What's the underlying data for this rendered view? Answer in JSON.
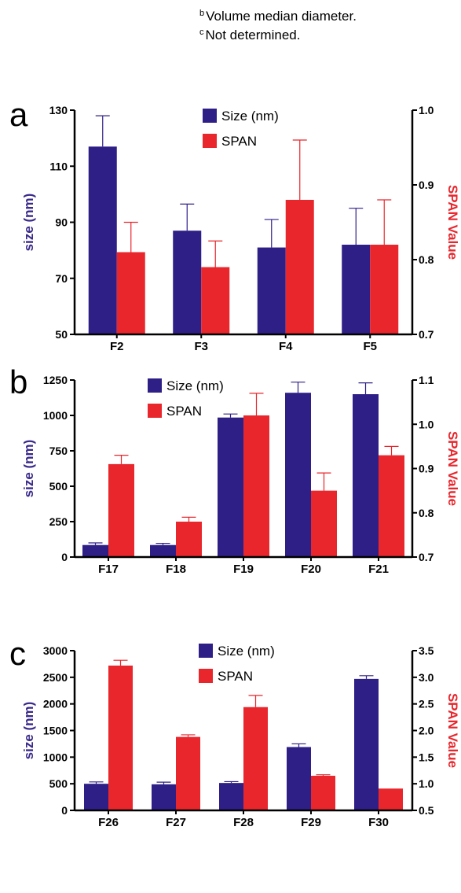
{
  "footnotes": [
    {
      "marker": "b",
      "text": "Volume median diameter."
    },
    {
      "marker": "c",
      "text": "Not determined."
    }
  ],
  "colors": {
    "size": "#2e1f87",
    "span": "#e8262c",
    "size_axis": "#3a2a8a",
    "span_axis": "#e8262c"
  },
  "chart_data": [
    {
      "panel": "a",
      "type": "bar",
      "categories": [
        "F2",
        "F3",
        "F4",
        "F5"
      ],
      "ylabel": "size (nm)",
      "y2label": "SPAN Value",
      "ylim": [
        50,
        130
      ],
      "yticks": [
        "50",
        "70",
        "90",
        "110",
        "130"
      ],
      "y2lim": [
        0.7,
        1.0
      ],
      "y2ticks": [
        "0.7",
        "0.8",
        "0.9",
        "1.0"
      ],
      "legend_position": "top-center",
      "series": [
        {
          "name": "Size (nm)",
          "axis": "left",
          "values": [
            117,
            87,
            81,
            82
          ],
          "errors": [
            11,
            9.5,
            10,
            13
          ]
        },
        {
          "name": "SPAN",
          "axis": "right",
          "values": [
            0.81,
            0.79,
            0.88,
            0.82
          ],
          "errors": [
            0.04,
            0.035,
            0.08,
            0.06
          ]
        }
      ]
    },
    {
      "panel": "b",
      "type": "bar",
      "categories": [
        "F17",
        "F18",
        "F19",
        "F20",
        "F21"
      ],
      "ylabel": "size (nm)",
      "y2label": "SPAN Value",
      "ylim": [
        0,
        1250
      ],
      "yticks": [
        "0",
        "250",
        "500",
        "750",
        "1000",
        "1250"
      ],
      "y2lim": [
        0.7,
        1.1
      ],
      "y2ticks": [
        "0.7",
        "0.8",
        "0.9",
        "1.0",
        "1.1"
      ],
      "legend_position": "top-center",
      "series": [
        {
          "name": "Size (nm)",
          "axis": "left",
          "values": [
            85,
            85,
            985,
            1160,
            1150
          ],
          "errors": [
            15,
            12,
            25,
            75,
            80
          ]
        },
        {
          "name": "SPAN",
          "axis": "right",
          "values": [
            0.91,
            0.78,
            1.02,
            0.85,
            0.93
          ],
          "errors": [
            0.02,
            0.01,
            0.05,
            0.04,
            0.02
          ]
        }
      ]
    },
    {
      "panel": "c",
      "type": "bar",
      "categories": [
        "F26",
        "F27",
        "F28",
        "F29",
        "F30"
      ],
      "ylabel": "size (nm)",
      "y2label": "SPAN Value",
      "ylim": [
        0,
        3000
      ],
      "yticks": [
        "0",
        "500",
        "1000",
        "1500",
        "2000",
        "2500",
        "3000"
      ],
      "y2lim": [
        0.5,
        3.5
      ],
      "y2ticks": [
        "0.5",
        "1.0",
        "1.5",
        "2.0",
        "2.5",
        "3.0",
        "3.5"
      ],
      "legend_position": "top-center",
      "series": [
        {
          "name": "Size (nm)",
          "axis": "left",
          "values": [
            500,
            490,
            515,
            1190,
            2470
          ],
          "errors": [
            35,
            40,
            25,
            60,
            60
          ]
        },
        {
          "name": "SPAN",
          "axis": "right",
          "values": [
            3.22,
            1.88,
            2.44,
            1.15,
            0.91
          ],
          "errors": [
            0.1,
            0.04,
            0.22,
            0.02,
            0.0
          ]
        }
      ]
    }
  ]
}
